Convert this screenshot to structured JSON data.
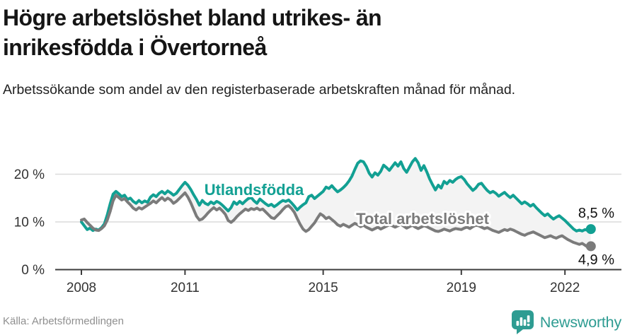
{
  "header": {
    "title_line1": "Högre arbetslöshet bland utrikes- än",
    "title_line2": "inrikesfödda i Övertorneå",
    "subtitle": "Arbetssökande som andel av den registerbaserade arbetskraften månad för månad."
  },
  "footer": {
    "source": "Källa: Arbetsförmedlingen",
    "brand": "Newsworthy",
    "brand_color": "#2e9c92",
    "logo_icon": "chart-bubble-icon"
  },
  "chart_data": {
    "type": "line",
    "title": "Högre arbetslöshet bland utrikes- än inrikesfödda i Övertorneå",
    "subtitle": "Arbetssökande som andel av den registerbaserade arbetskraften månad för månad.",
    "x_start_year": 2008,
    "points_per_year": 12,
    "x_end_label_note": "monthly data Jan 2008 - Oct 2022",
    "x_ticks": [
      2008,
      2011,
      2015,
      2019,
      2022
    ],
    "y_ticks": [
      {
        "label": "0 %",
        "value": 0
      },
      {
        "label": "10 %",
        "value": 10
      },
      {
        "label": "20 %",
        "value": 20
      }
    ],
    "ylim": [
      0,
      26
    ],
    "grid": "horizontal-only",
    "area_fill_between_series": "#f3f3f3",
    "grid_color": "#dcdcdc",
    "axis_color": "#3d3d3d",
    "tick_label_color": "#333333",
    "series": [
      {
        "name": "Utlandsfödda",
        "color": "#12a093",
        "end_label": "8,5 %",
        "values": [
          10.0,
          9.2,
          8.4,
          8.7,
          8.2,
          8.5,
          8.3,
          8.8,
          9.6,
          11.5,
          13.8,
          15.8,
          16.4,
          15.9,
          15.3,
          15.6,
          14.7,
          15.0,
          14.3,
          13.9,
          14.5,
          14.0,
          14.4,
          14.1,
          15.2,
          15.7,
          15.3,
          16.0,
          16.4,
          15.9,
          16.5,
          16.1,
          15.6,
          16.0,
          16.8,
          17.6,
          18.3,
          17.7,
          16.8,
          15.7,
          14.7,
          13.5,
          14.5,
          13.9,
          13.6,
          14.2,
          13.8,
          14.3,
          14.0,
          13.5,
          12.9,
          12.3,
          13.0,
          14.2,
          13.7,
          14.3,
          13.8,
          14.4,
          14.9,
          15.1,
          14.4,
          13.9,
          14.8,
          14.3,
          13.8,
          13.4,
          13.7,
          13.2,
          13.6,
          14.1,
          14.5,
          14.3,
          14.6,
          14.0,
          13.3,
          12.5,
          13.1,
          13.6,
          14.0,
          15.3,
          15.6,
          14.9,
          15.4,
          15.9,
          16.4,
          17.3,
          17.0,
          17.6,
          16.9,
          16.3,
          16.7,
          17.2,
          17.8,
          18.6,
          19.6,
          21.0,
          22.3,
          22.8,
          22.6,
          21.6,
          20.2,
          19.4,
          20.3,
          19.8,
          20.6,
          21.9,
          21.4,
          20.8,
          21.6,
          22.4,
          21.7,
          22.6,
          21.2,
          20.4,
          21.5,
          22.6,
          23.3,
          22.4,
          20.8,
          21.8,
          20.5,
          19.0,
          17.8,
          16.7,
          17.7,
          17.1,
          18.5,
          18.0,
          18.7,
          18.3,
          18.9,
          19.3,
          19.5,
          18.9,
          18.0,
          17.3,
          16.6,
          17.1,
          17.9,
          18.1,
          17.3,
          16.6,
          16.1,
          16.4,
          16.0,
          15.4,
          15.8,
          16.2,
          15.6,
          15.1,
          15.6,
          15.0,
          14.4,
          13.8,
          14.2,
          13.8,
          13.3,
          13.7,
          13.0,
          12.4,
          11.8,
          11.3,
          11.7,
          11.1,
          10.6,
          11.0,
          11.3,
          10.8,
          10.3,
          9.7,
          9.1,
          8.5,
          8.1,
          8.3,
          8.1,
          8.4,
          8.2,
          8.5
        ]
      },
      {
        "name": "Total arbetslöshet",
        "color": "#7b7b7b",
        "end_label": "4,9 %",
        "values": [
          10.4,
          10.6,
          9.9,
          9.3,
          8.7,
          8.3,
          8.2,
          8.6,
          9.2,
          10.4,
          12.2,
          14.4,
          15.6,
          15.1,
          14.6,
          14.9,
          14.2,
          13.6,
          12.9,
          12.5,
          13.0,
          12.7,
          13.1,
          13.5,
          13.9,
          14.4,
          14.0,
          14.6,
          15.1,
          14.5,
          15.0,
          14.6,
          13.9,
          14.3,
          14.9,
          15.5,
          16.1,
          15.2,
          14.0,
          12.6,
          11.2,
          10.4,
          10.6,
          11.2,
          11.9,
          12.5,
          13.0,
          12.5,
          12.9,
          12.3,
          11.6,
          10.3,
          9.9,
          10.4,
          11.1,
          11.7,
          12.2,
          12.7,
          12.4,
          12.8,
          12.6,
          12.9,
          12.5,
          12.7,
          12.1,
          11.5,
          10.9,
          10.7,
          11.3,
          11.9,
          12.6,
          13.2,
          13.4,
          12.8,
          12.0,
          10.7,
          9.5,
          8.5,
          8.0,
          8.4,
          9.1,
          9.8,
          10.8,
          11.7,
          11.3,
          10.7,
          11.0,
          10.5,
          10.0,
          9.4,
          9.1,
          9.5,
          9.2,
          8.9,
          9.3,
          9.7,
          9.4,
          9.0,
          9.3,
          8.9,
          8.6,
          8.3,
          8.6,
          8.9,
          8.5,
          8.8,
          9.1,
          9.4,
          9.2,
          8.9,
          9.2,
          9.5,
          9.1,
          8.7,
          9.0,
          9.3,
          8.9,
          8.6,
          8.9,
          9.2,
          9.0,
          8.7,
          8.4,
          8.1,
          8.0,
          8.2,
          8.5,
          8.3,
          8.1,
          8.4,
          8.6,
          8.5,
          8.4,
          8.7,
          8.9,
          8.6,
          9.0,
          9.3,
          9.2,
          8.9,
          8.6,
          8.8,
          8.5,
          8.2,
          8.0,
          7.8,
          8.1,
          8.4,
          8.2,
          8.5,
          8.3,
          8.0,
          7.7,
          7.4,
          7.2,
          7.5,
          7.7,
          7.9,
          7.6,
          7.3,
          7.0,
          6.7,
          6.9,
          7.1,
          6.8,
          6.6,
          6.9,
          7.1,
          6.7,
          6.3,
          6.0,
          5.7,
          5.5,
          5.3,
          5.5,
          5.1,
          4.7,
          4.9
        ]
      }
    ],
    "legend_position": "inline-labels-on-chart"
  }
}
